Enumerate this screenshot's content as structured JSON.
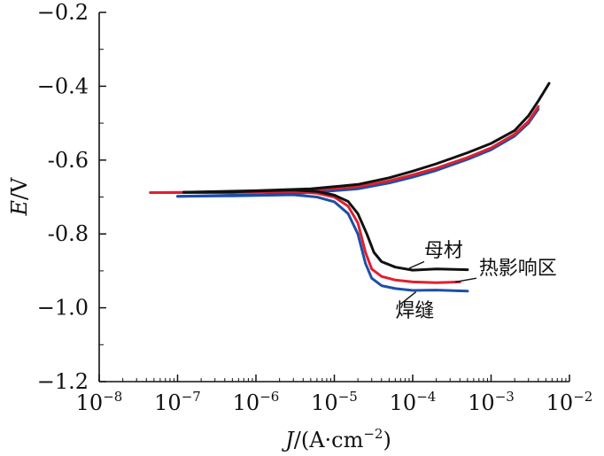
{
  "chart_data": {
    "type": "line",
    "xlabel": "J/(A·cm⁻²)",
    "xlabel_parts": {
      "var": "J",
      "rest": "/(A·cm",
      "exp": "−2",
      "close": ")"
    },
    "ylabel": "E/V",
    "ylabel_parts": {
      "var": "E",
      "rest": "/V"
    },
    "x_scale": "log",
    "xlim": [
      1e-08,
      0.01
    ],
    "ylim": [
      -1.2,
      -0.2
    ],
    "x_ticks": [
      {
        "base": "10",
        "exp": "−8"
      },
      {
        "base": "10",
        "exp": "−7"
      },
      {
        "base": "10",
        "exp": "−6"
      },
      {
        "base": "10",
        "exp": "−5"
      },
      {
        "base": "10",
        "exp": "−4"
      },
      {
        "base": "10",
        "exp": "−3"
      },
      {
        "base": "10",
        "exp": "−2"
      }
    ],
    "y_ticks": [
      "−0.2",
      "−0.4",
      "-0.6",
      "-0.8",
      "−1.0",
      "−1.2"
    ],
    "grid": false,
    "series": [
      {
        "name": "母材",
        "color": "#111111",
        "points": [
          [
            1.2e-07,
            -0.687
          ],
          [
            5e-07,
            -0.686
          ],
          [
            1e-06,
            -0.684
          ],
          [
            3e-06,
            -0.681
          ],
          [
            6e-06,
            -0.685
          ],
          [
            1e-05,
            -0.695
          ],
          [
            1.5e-05,
            -0.712
          ],
          [
            2e-05,
            -0.745
          ],
          [
            2.6e-05,
            -0.8
          ],
          [
            3.2e-05,
            -0.85
          ],
          [
            4e-05,
            -0.875
          ],
          [
            6e-05,
            -0.89
          ],
          [
            0.0001,
            -0.898
          ],
          [
            0.0002,
            -0.895
          ],
          [
            0.0005,
            -0.897
          ]
        ],
        "anodic": [
          [
            1.2e-07,
            -0.687
          ],
          [
            1e-06,
            -0.683
          ],
          [
            5e-06,
            -0.678
          ],
          [
            2e-05,
            -0.666
          ],
          [
            5e-05,
            -0.648
          ],
          [
            0.0001,
            -0.63
          ],
          [
            0.0002,
            -0.61
          ],
          [
            0.0005,
            -0.58
          ],
          [
            0.001,
            -0.555
          ],
          [
            0.002,
            -0.52
          ],
          [
            0.003,
            -0.48
          ],
          [
            0.004,
            -0.44
          ],
          [
            0.0055,
            -0.392
          ]
        ]
      },
      {
        "name": "热影响区",
        "color": "#e0202e",
        "points": [
          [
            4.5e-08,
            -0.688
          ],
          [
            5e-07,
            -0.688
          ],
          [
            1e-06,
            -0.686
          ],
          [
            3e-06,
            -0.685
          ],
          [
            6e-06,
            -0.69
          ],
          [
            1e-05,
            -0.7
          ],
          [
            1.5e-05,
            -0.725
          ],
          [
            2e-05,
            -0.77
          ],
          [
            2.5e-05,
            -0.85
          ],
          [
            3e-05,
            -0.895
          ],
          [
            4e-05,
            -0.915
          ],
          [
            6e-05,
            -0.925
          ],
          [
            0.0001,
            -0.93
          ],
          [
            0.0002,
            -0.932
          ],
          [
            0.0004,
            -0.93
          ]
        ],
        "anodic": [
          [
            4.5e-08,
            -0.688
          ],
          [
            1e-06,
            -0.686
          ],
          [
            5e-06,
            -0.682
          ],
          [
            2e-05,
            -0.672
          ],
          [
            5e-05,
            -0.656
          ],
          [
            0.0001,
            -0.64
          ],
          [
            0.0002,
            -0.622
          ],
          [
            0.0005,
            -0.593
          ],
          [
            0.001,
            -0.567
          ],
          [
            0.002,
            -0.53
          ],
          [
            0.003,
            -0.495
          ],
          [
            0.004,
            -0.455
          ]
        ]
      },
      {
        "name": "焊缝",
        "color": "#1e4fa8",
        "points": [
          [
            1e-07,
            -0.698
          ],
          [
            5e-07,
            -0.697
          ],
          [
            1e-06,
            -0.696
          ],
          [
            3e-06,
            -0.694
          ],
          [
            6e-06,
            -0.7
          ],
          [
            1e-05,
            -0.713
          ],
          [
            1.5e-05,
            -0.745
          ],
          [
            2e-05,
            -0.8
          ],
          [
            2.5e-05,
            -0.88
          ],
          [
            3e-05,
            -0.92
          ],
          [
            4e-05,
            -0.94
          ],
          [
            6e-05,
            -0.948
          ],
          [
            0.0001,
            -0.953
          ],
          [
            0.0002,
            -0.952
          ],
          [
            0.0005,
            -0.955
          ]
        ],
        "anodic": [
          [
            1e-07,
            -0.698
          ],
          [
            1e-06,
            -0.694
          ],
          [
            5e-06,
            -0.688
          ],
          [
            2e-05,
            -0.678
          ],
          [
            5e-05,
            -0.662
          ],
          [
            0.0001,
            -0.646
          ],
          [
            0.0002,
            -0.628
          ],
          [
            0.0005,
            -0.598
          ],
          [
            0.001,
            -0.572
          ],
          [
            0.002,
            -0.535
          ],
          [
            0.003,
            -0.5
          ],
          [
            0.004,
            -0.462
          ]
        ]
      }
    ],
    "annotations": [
      {
        "text": "母材",
        "series": "母材",
        "at": [
          0.00014,
          -0.862
        ],
        "line_from": [
          0.00014,
          -0.875
        ],
        "line_to": [
          9e-05,
          -0.893
        ]
      },
      {
        "text": "热影响区",
        "series": "热影响区",
        "at": [
          0.0007,
          -0.91
        ],
        "line_from": [
          0.00065,
          -0.92
        ],
        "line_to": [
          0.00035,
          -0.93
        ]
      },
      {
        "text": "焊缝",
        "series": "焊缝",
        "at": [
          6e-05,
          -1.025
        ],
        "line_from": [
          7e-05,
          -0.99
        ],
        "line_to": [
          0.00011,
          -0.957
        ]
      }
    ]
  }
}
